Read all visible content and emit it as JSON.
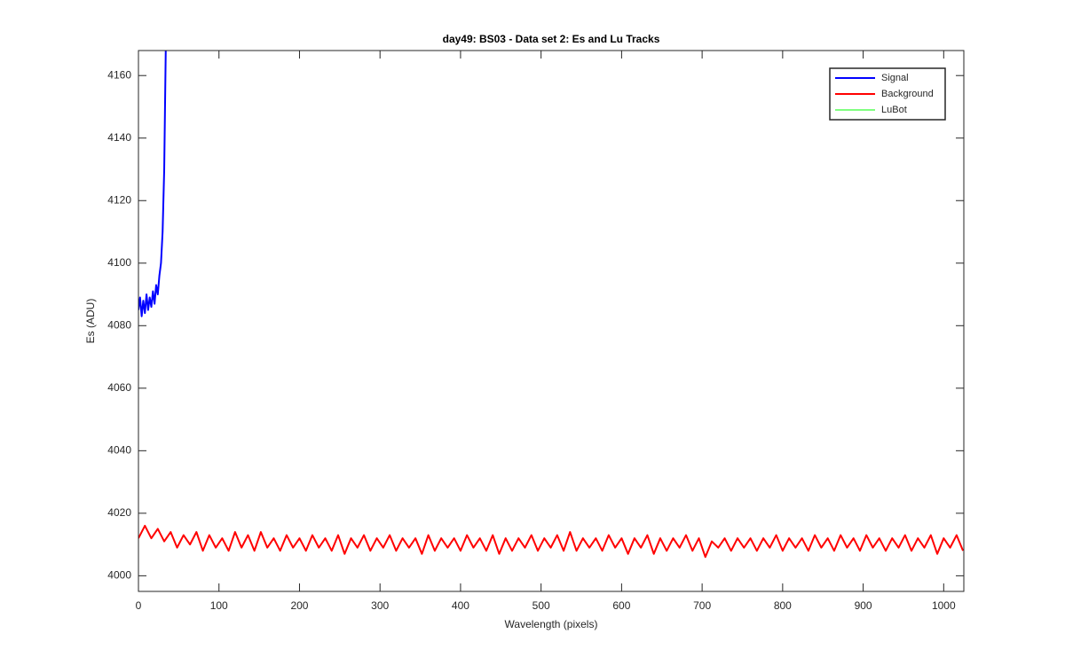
{
  "chart_data": {
    "type": "line",
    "title": "day49: BS03 - Data set 2: Es and Lu Tracks",
    "xlabel": "Wavelength (pixels)",
    "ylabel": "Es (ADU)",
    "xlim": [
      0,
      1025
    ],
    "ylim": [
      3995,
      4168
    ],
    "xticks": [
      0,
      100,
      200,
      300,
      400,
      500,
      600,
      700,
      800,
      900,
      1000
    ],
    "yticks": [
      4000,
      4020,
      4040,
      4060,
      4080,
      4100,
      4120,
      4140,
      4160
    ],
    "legend": "northeast",
    "grid": false,
    "series": [
      {
        "name": "Signal",
        "color": "#0000ff",
        "x": [
          0,
          2,
          4,
          6,
          8,
          10,
          12,
          14,
          16,
          18,
          20,
          22,
          24,
          26,
          28,
          30,
          32,
          34
        ],
        "values": [
          4085,
          4089,
          4083,
          4088,
          4084,
          4090,
          4085,
          4089,
          4086,
          4091,
          4087,
          4093,
          4090,
          4096,
          4100,
          4110,
          4130,
          4170
        ]
      },
      {
        "name": "Background",
        "color": "#ff0000",
        "x": [
          0,
          8,
          16,
          24,
          32,
          40,
          48,
          56,
          64,
          72,
          80,
          88,
          96,
          104,
          112,
          120,
          128,
          136,
          144,
          152,
          160,
          168,
          176,
          184,
          192,
          200,
          208,
          216,
          224,
          232,
          240,
          248,
          256,
          264,
          272,
          280,
          288,
          296,
          304,
          312,
          320,
          328,
          336,
          344,
          352,
          360,
          368,
          376,
          384,
          392,
          400,
          408,
          416,
          424,
          432,
          440,
          448,
          456,
          464,
          472,
          480,
          488,
          496,
          504,
          512,
          520,
          528,
          536,
          544,
          552,
          560,
          568,
          576,
          584,
          592,
          600,
          608,
          616,
          624,
          632,
          640,
          648,
          656,
          664,
          672,
          680,
          688,
          696,
          704,
          712,
          720,
          728,
          736,
          744,
          752,
          760,
          768,
          776,
          784,
          792,
          800,
          808,
          816,
          824,
          832,
          840,
          848,
          856,
          864,
          872,
          880,
          888,
          896,
          904,
          912,
          920,
          928,
          936,
          944,
          952,
          960,
          968,
          976,
          984,
          992,
          1000,
          1008,
          1016,
          1024
        ],
        "values": [
          4012,
          4016,
          4012,
          4015,
          4011,
          4014,
          4009,
          4013,
          4010,
          4014,
          4008,
          4013,
          4009,
          4012,
          4008,
          4014,
          4009,
          4013,
          4008,
          4014,
          4009,
          4012,
          4008,
          4013,
          4009,
          4012,
          4008,
          4013,
          4009,
          4012,
          4008,
          4013,
          4007,
          4012,
          4009,
          4013,
          4008,
          4012,
          4009,
          4013,
          4008,
          4012,
          4009,
          4012,
          4007,
          4013,
          4008,
          4012,
          4009,
          4012,
          4008,
          4013,
          4009,
          4012,
          4008,
          4013,
          4007,
          4012,
          4008,
          4012,
          4009,
          4013,
          4008,
          4012,
          4009,
          4013,
          4008,
          4014,
          4008,
          4012,
          4009,
          4012,
          4008,
          4013,
          4009,
          4012,
          4007,
          4012,
          4009,
          4013,
          4007,
          4012,
          4008,
          4012,
          4009,
          4013,
          4008,
          4012,
          4006,
          4011,
          4009,
          4012,
          4008,
          4012,
          4009,
          4012,
          4008,
          4012,
          4009,
          4013,
          4008,
          4012,
          4009,
          4012,
          4008,
          4013,
          4009,
          4012,
          4008,
          4013,
          4009,
          4012,
          4008,
          4013,
          4009,
          4012,
          4008,
          4012,
          4009,
          4013,
          4008,
          4012,
          4009,
          4013,
          4007,
          4012,
          4009,
          4013,
          4008
        ]
      },
      {
        "name": "LuBot",
        "color": "#00ff00",
        "x": [],
        "values": []
      }
    ]
  }
}
